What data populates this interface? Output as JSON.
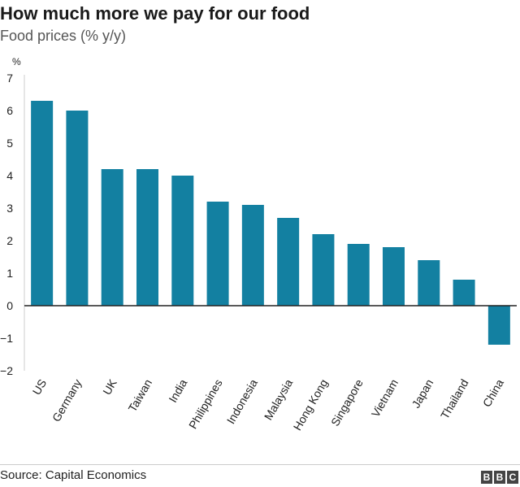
{
  "header": {
    "title": "How much more we pay for our food",
    "subtitle": "Food prices (% y/y)"
  },
  "footer": {
    "source": "Source: Capital Economics",
    "logo_letters": [
      "B",
      "B",
      "C"
    ]
  },
  "chart_data": {
    "type": "bar",
    "categories": [
      "US",
      "Germany",
      "UK",
      "Taiwan",
      "India",
      "Philippines",
      "Indonesia",
      "Malaysia",
      "Hong Kong",
      "Singapore",
      "Vietnam",
      "Japan",
      "Thailand",
      "China"
    ],
    "values": [
      6.3,
      6.0,
      4.2,
      4.2,
      4.0,
      3.2,
      3.1,
      2.7,
      2.2,
      1.9,
      1.8,
      1.4,
      0.8,
      -1.2
    ],
    "title": "How much more we pay for our food",
    "subtitle": "Food prices (% y/y)",
    "ylabel": "%",
    "xlabel": "",
    "ylim": [
      -2,
      7
    ],
    "yticks": [
      7,
      6,
      5,
      4,
      3,
      2,
      1,
      0,
      -1,
      -2
    ],
    "bar_color": "#1380a1",
    "grid": false,
    "legend": "none"
  }
}
